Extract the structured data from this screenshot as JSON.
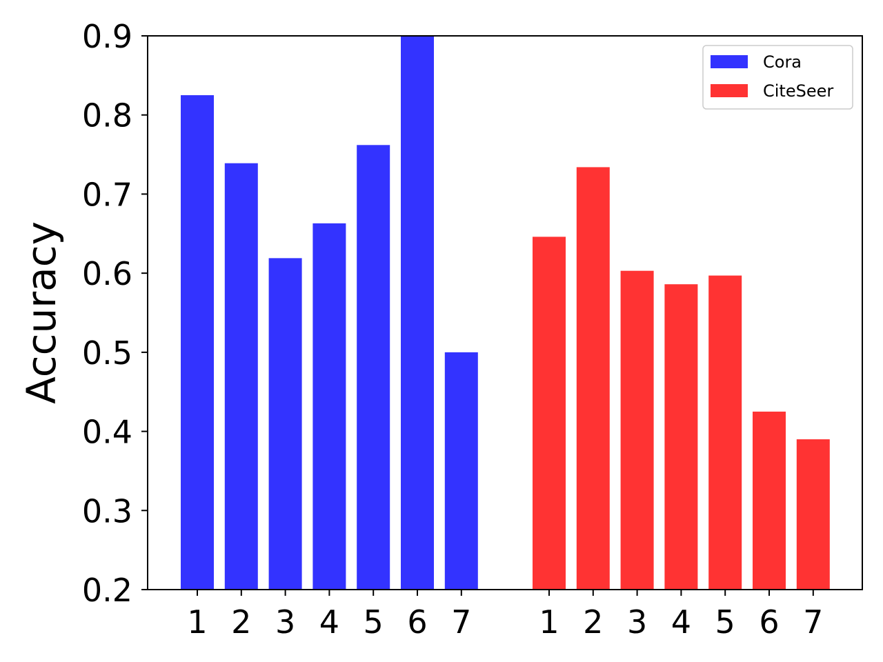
{
  "chart_data": {
    "type": "bar",
    "title": "",
    "xlabel": "",
    "ylabel": "Accuracy",
    "ylim": [
      0.2,
      0.9
    ],
    "yticks": [
      "0.2",
      "0.3",
      "0.4",
      "0.5",
      "0.6",
      "0.7",
      "0.8",
      "0.9"
    ],
    "grid": false,
    "legend_position": "top-right",
    "groups": [
      {
        "name": "Cora",
        "color": "#3333ff",
        "categories": [
          "1",
          "2",
          "3",
          "4",
          "5",
          "6",
          "7"
        ],
        "values": [
          0.825,
          0.739,
          0.619,
          0.663,
          0.762,
          0.9,
          0.5
        ]
      },
      {
        "name": "CiteSeer",
        "color": "#ff3333",
        "categories": [
          "1",
          "2",
          "3",
          "4",
          "5",
          "6",
          "7"
        ],
        "values": [
          0.646,
          0.734,
          0.603,
          0.586,
          0.597,
          0.425,
          0.39
        ]
      }
    ]
  }
}
